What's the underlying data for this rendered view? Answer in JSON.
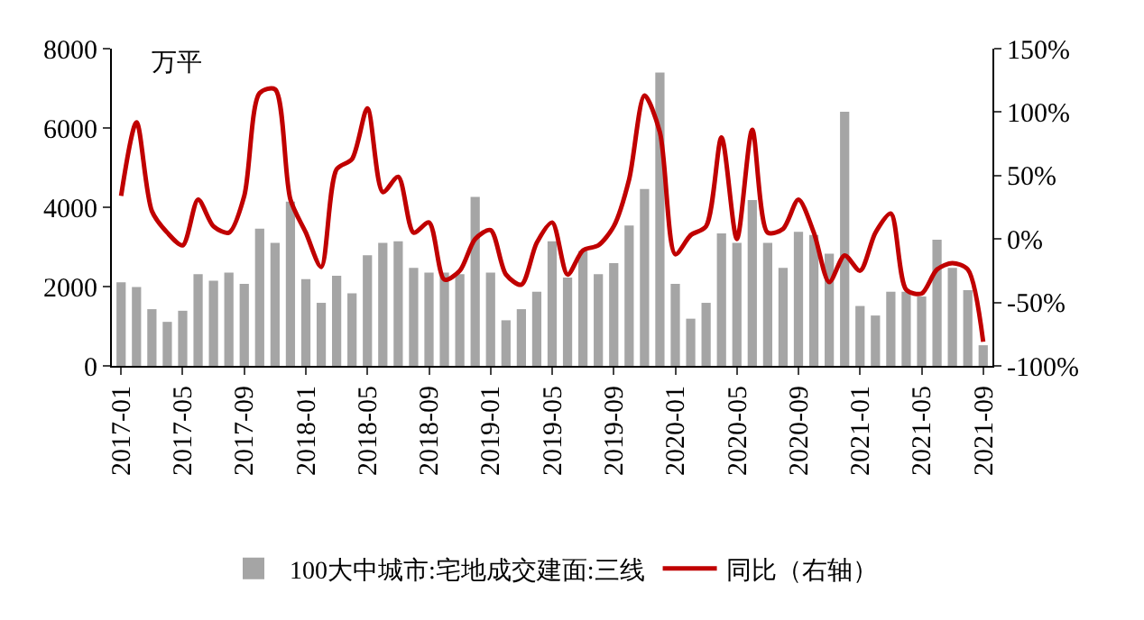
{
  "chart_data": {
    "type": "bar",
    "ylabel": "万平",
    "categories": [
      "2017-01",
      null,
      null,
      null,
      "2017-05",
      null,
      null,
      null,
      "2017-09",
      null,
      null,
      null,
      "2018-01",
      null,
      null,
      null,
      "2018-05",
      null,
      null,
      null,
      "2018-09",
      null,
      null,
      null,
      "2019-01",
      null,
      null,
      null,
      "2019-05",
      null,
      null,
      null,
      "2019-09",
      null,
      null,
      null,
      "2020-01",
      null,
      null,
      null,
      "2020-05",
      null,
      null,
      null,
      "2020-09",
      null,
      null,
      null,
      "2021-01",
      null,
      null,
      null,
      "2021-05",
      null,
      null,
      null,
      "2021-09"
    ],
    "series": [
      {
        "name": "100大中城市:宅地成交建面:三线",
        "color": "#a5a5a5",
        "values": [
          2110,
          1990,
          1430,
          1110,
          1390,
          2310,
          2150,
          2350,
          2070,
          3460,
          3100,
          4140,
          2190,
          1590,
          2270,
          1830,
          2790,
          3100,
          3140,
          2470,
          2350,
          2350,
          2310,
          4260,
          2350,
          1150,
          1430,
          1870,
          3140,
          2230,
          2900,
          2310,
          2590,
          3540,
          4460,
          7400,
          2070,
          1190,
          1590,
          3340,
          3100,
          4180,
          3100,
          2470,
          3380,
          3300,
          2830,
          6410,
          1510,
          1270,
          1870,
          1870,
          1750,
          3180,
          2470,
          1910,
          520
        ]
      },
      {
        "name": "同比（右轴）",
        "type": "line",
        "axis": "y2",
        "color": "#c00000",
        "line_style": "solid",
        "marker": "none",
        "values": [
          34,
          92,
          22,
          5,
          -5,
          31,
          10,
          5,
          34,
          115,
          118,
          31,
          5,
          -22,
          55,
          63,
          103,
          37,
          49,
          5,
          13,
          -32,
          -25,
          0,
          7,
          -28,
          -36,
          -3,
          13,
          -28,
          -9,
          -5,
          10,
          47,
          113,
          84,
          -12,
          3,
          10,
          80,
          0,
          86,
          5,
          8,
          31,
          5,
          -34,
          -13,
          -25,
          5,
          20,
          -40,
          -43,
          -24,
          -19,
          -24,
          -81
        ]
      }
    ],
    "ylim": [
      0,
      8000
    ],
    "yticks": [
      0,
      2000,
      4000,
      6000,
      8000
    ],
    "y2lim": [
      -100,
      150
    ],
    "y2ticks": [
      {
        "value": -100,
        "label": "-100%"
      },
      {
        "value": -50,
        "label": "-50%"
      },
      {
        "value": 0,
        "label": "0%"
      },
      {
        "value": 50,
        "label": "50%"
      },
      {
        "value": 100,
        "label": "100%"
      },
      {
        "value": 150,
        "label": "150%"
      }
    ],
    "grid": false,
    "legend": "bottom"
  }
}
